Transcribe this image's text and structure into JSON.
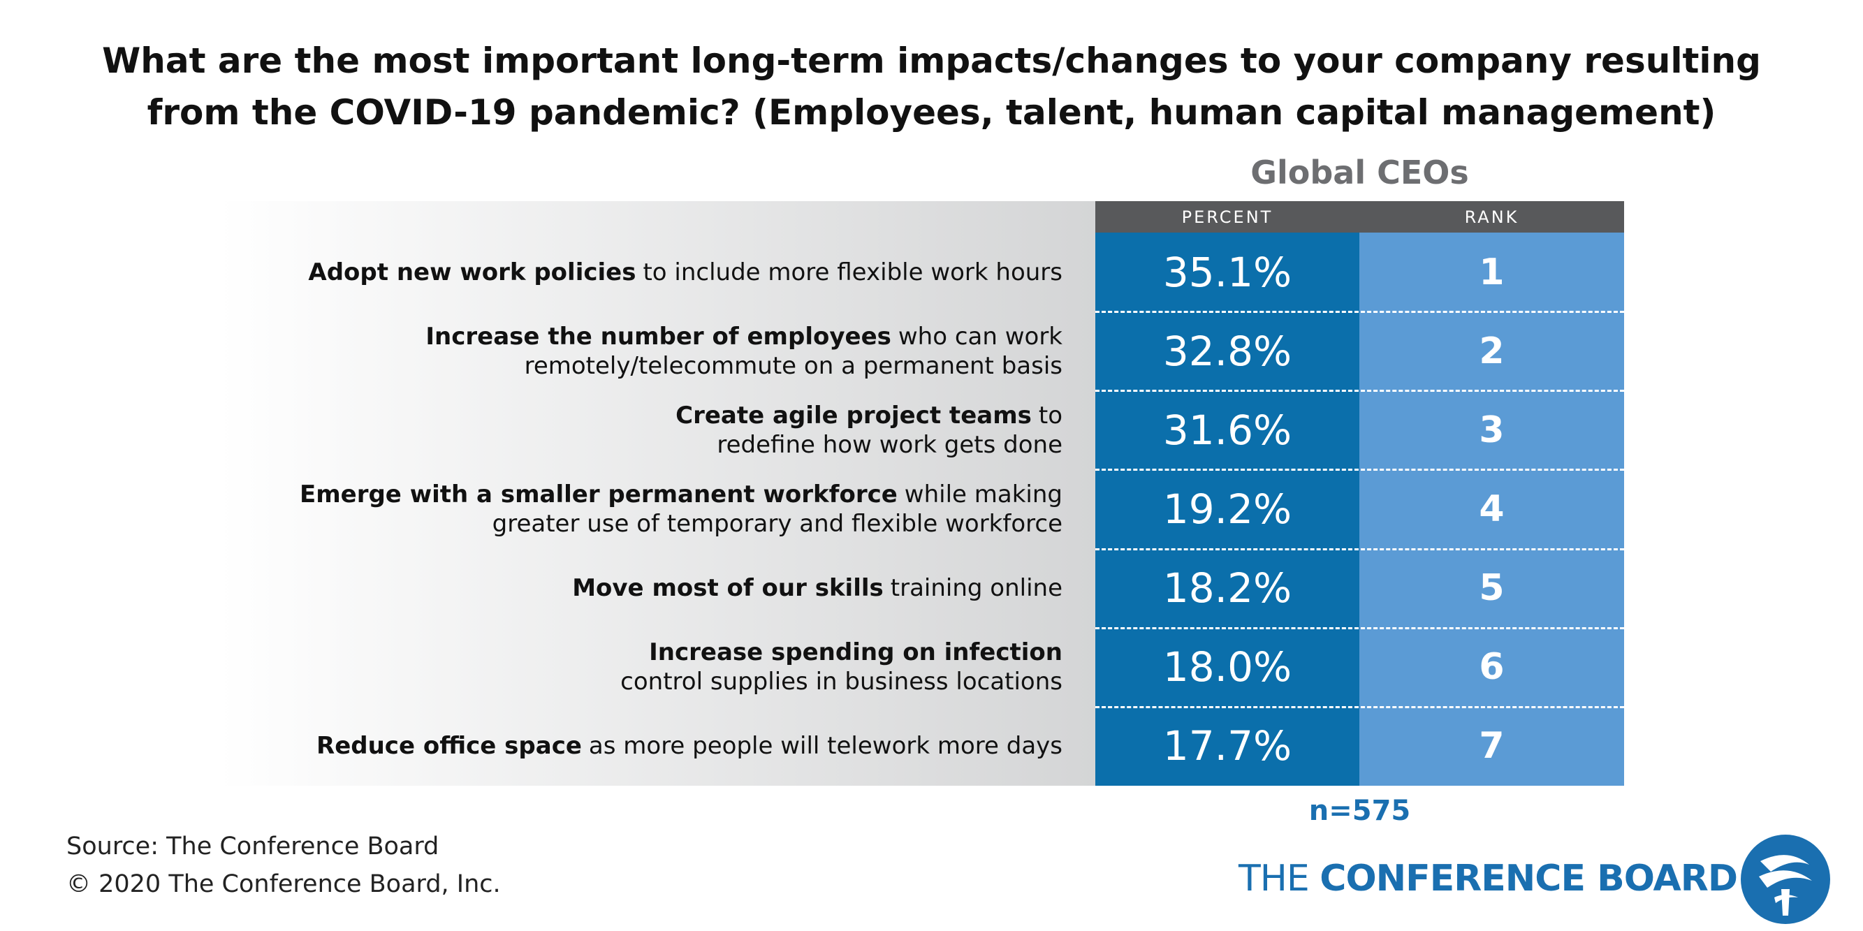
{
  "title": [
    "What are the most important long-term impacts/changes to your company resulting",
    "from the COVID-19 pandemic? (Employees, talent, human capital management)"
  ],
  "table": {
    "group_header": "Global CEOs",
    "columns": [
      "PERCENT",
      "RANK"
    ],
    "rows": [
      {
        "label": [
          [
            {
              "b": "Adopt new work policies"
            },
            {
              "t": "to include more flexible work hours"
            }
          ]
        ],
        "percent": "35.1%",
        "rank": "1"
      },
      {
        "label": [
          [
            {
              "b": "Increase the number of employees"
            },
            {
              "t": "who can work"
            }
          ],
          [
            {
              "t": "remotely/telecommute on a permanent basis"
            }
          ]
        ],
        "percent": "32.8%",
        "rank": "2"
      },
      {
        "label": [
          [
            {
              "b": "Create agile project teams"
            },
            {
              "t": "to"
            }
          ],
          [
            {
              "t": "redefine how work gets done"
            }
          ]
        ],
        "percent": "31.6%",
        "rank": "3"
      },
      {
        "label": [
          [
            {
              "b": "Emerge with a smaller permanent workforce"
            },
            {
              "t": "while making"
            }
          ],
          [
            {
              "t": "greater use of temporary and flexible workforce"
            }
          ]
        ],
        "percent": "19.2%",
        "rank": "4"
      },
      {
        "label": [
          [
            {
              "b": "Move most of our skills"
            },
            {
              "t": "training online"
            }
          ]
        ],
        "percent": "18.2%",
        "rank": "5"
      },
      {
        "label": [
          [
            {
              "b": "Increase spending on infection"
            }
          ],
          [
            {
              "t": "control supplies in business locations"
            }
          ]
        ],
        "percent": "18.0%",
        "rank": "6"
      },
      {
        "label": [
          [
            {
              "b": "Reduce office space"
            },
            {
              "t": "as more people will telework more days"
            }
          ]
        ],
        "percent": "17.7%",
        "rank": "7"
      }
    ],
    "note": "n=575"
  },
  "footer": {
    "source": [
      "Source: The Conference Board",
      "© 2020 The Conference Board, Inc."
    ],
    "logo": {
      "pre": "THE",
      "main": "CONFERENCE BOARD"
    }
  }
}
